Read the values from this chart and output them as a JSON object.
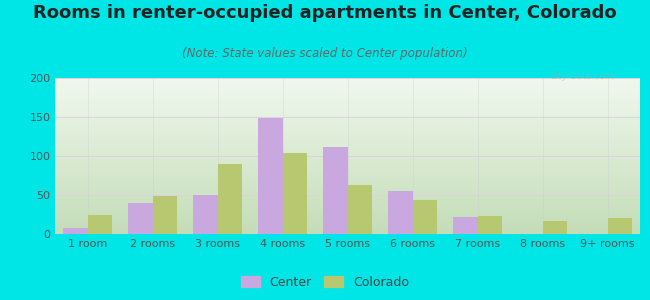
{
  "title": "Rooms in renter-occupied apartments in Center, Colorado",
  "subtitle": "(Note: State values scaled to Center population)",
  "categories": [
    "1 room",
    "2 rooms",
    "3 rooms",
    "4 rooms",
    "5 rooms",
    "6 rooms",
    "7 rooms",
    "8 rooms",
    "9+ rooms"
  ],
  "center_values": [
    8,
    40,
    50,
    149,
    112,
    55,
    22,
    0,
    0
  ],
  "colorado_values": [
    25,
    49,
    90,
    104,
    63,
    43,
    23,
    17,
    20
  ],
  "center_color": "#c9a8e0",
  "colorado_color": "#b8c870",
  "background_color": "#00e5e5",
  "ylim": [
    0,
    200
  ],
  "yticks": [
    0,
    50,
    100,
    150,
    200
  ],
  "legend_labels": [
    "Center",
    "Colorado"
  ],
  "title_fontsize": 13,
  "subtitle_fontsize": 8.5,
  "tick_fontsize": 8,
  "legend_fontsize": 9,
  "bar_width": 0.38
}
